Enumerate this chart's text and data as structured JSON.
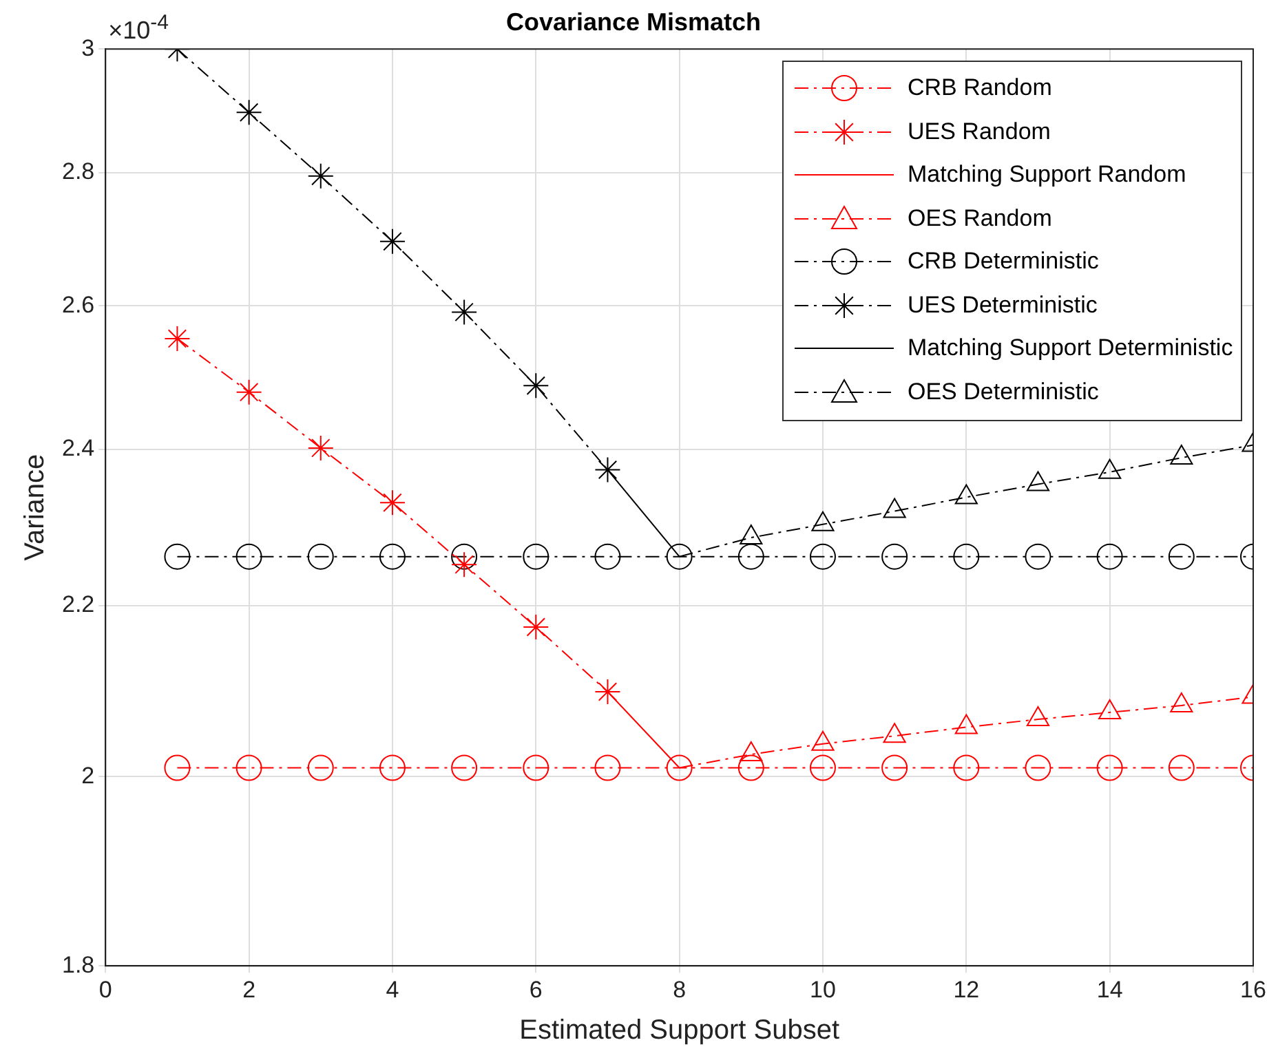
{
  "chart_data": {
    "type": "line",
    "title": "Covariance Mismatch",
    "xlabel": "Estimated Support Subset",
    "ylabel": "Variance",
    "annotations": [
      "×10$^{-4}$"
    ],
    "x": [
      1,
      2,
      3,
      4,
      5,
      6,
      7,
      8,
      9,
      10,
      11,
      12,
      13,
      14,
      15,
      16
    ],
    "xlim": [
      0,
      16
    ],
    "xticks": [
      0,
      2,
      4,
      6,
      8,
      10,
      12,
      14,
      16
    ],
    "ylim": [
      1.8,
      3
    ],
    "yticks": [
      1.8,
      2,
      2.2,
      2.4,
      2.6,
      2.8,
      3
    ],
    "log": "y",
    "grid": true,
    "legend": "top right",
    "series": [
      {
        "name": "CRB Random",
        "color": "#ff0000",
        "marker": "circle",
        "line_style": "dashed",
        "values": [
          2.01,
          2.01,
          2.01,
          2.01,
          2.01,
          2.01,
          2.01,
          2.01,
          2.01,
          2.01,
          2.01,
          2.01,
          2.01,
          2.01,
          2.01,
          2.01
        ]
      },
      {
        "name": "UES Random",
        "color": "#ff0000",
        "marker": "cross",
        "line_style": "dashed",
        "values": [
          2.553,
          2.478,
          2.402,
          2.33,
          2.251,
          2.174,
          2.097,
          null,
          null,
          null,
          null,
          null,
          null,
          null,
          null,
          null
        ]
      },
      {
        "name": "Matching Support Random",
        "color": "#ff0000",
        "marker": "none",
        "line_style": "solid",
        "values": [
          null,
          null,
          null,
          null,
          null,
          null,
          2.097,
          2.01,
          null,
          null,
          null,
          null,
          null,
          null,
          null,
          null
        ]
      },
      {
        "name": "OES Random",
        "color": "#ff0000",
        "marker": "triangle",
        "line_style": "dashed",
        "values": [
          null,
          null,
          null,
          null,
          null,
          null,
          null,
          2.01,
          2.025,
          2.037,
          2.046,
          2.056,
          2.065,
          2.073,
          2.081,
          2.091
        ]
      },
      {
        "name": "CRB Deterministic",
        "color": "#000000",
        "marker": "circle",
        "line_style": "dashed",
        "values": [
          2.261,
          2.261,
          2.261,
          2.261,
          2.261,
          2.261,
          2.261,
          2.261,
          2.261,
          2.261,
          2.261,
          2.261,
          2.261,
          2.261,
          2.261,
          2.261
        ]
      },
      {
        "name": "UES Deterministic",
        "color": "#000000",
        "marker": "cross",
        "line_style": "dashed",
        "values": [
          3.0,
          2.896,
          2.795,
          2.695,
          2.591,
          2.487,
          2.373,
          null,
          null,
          null,
          null,
          null,
          null,
          null,
          null,
          null
        ]
      },
      {
        "name": "Matching Support Deterministic",
        "color": "#000000",
        "marker": "none",
        "line_style": "solid",
        "values": [
          null,
          null,
          null,
          null,
          null,
          null,
          2.373,
          2.261,
          null,
          null,
          null,
          null,
          null,
          null,
          null,
          null
        ]
      },
      {
        "name": "OES Deterministic",
        "color": "#000000",
        "marker": "triangle",
        "line_style": "dashed",
        "values": [
          null,
          null,
          null,
          null,
          null,
          null,
          null,
          2.261,
          2.285,
          2.302,
          2.319,
          2.337,
          2.354,
          2.37,
          2.389,
          2.406
        ]
      }
    ]
  }
}
